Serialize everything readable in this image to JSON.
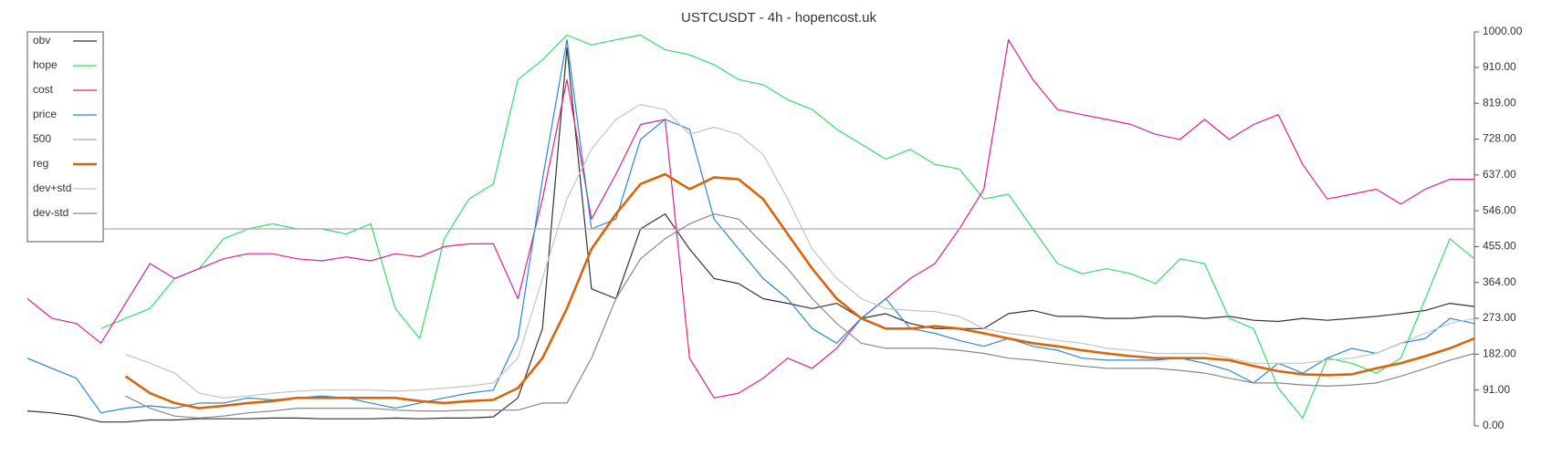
{
  "chart_data": {
    "type": "line",
    "title": "USTCUSDT - 4h - hopencost.uk",
    "ylim": [
      0,
      1000
    ],
    "yticks": [
      {
        "value": 0,
        "label": "0.00"
      },
      {
        "value": 91,
        "label": "91.00"
      },
      {
        "value": 182,
        "label": "182.00"
      },
      {
        "value": 273,
        "label": "273.00"
      },
      {
        "value": 364,
        "label": "364.00"
      },
      {
        "value": 455,
        "label": "455.00"
      },
      {
        "value": 546,
        "label": "546.00"
      },
      {
        "value": 637,
        "label": "637.00"
      },
      {
        "value": 728,
        "label": "728.00"
      },
      {
        "value": 819,
        "label": "819.00"
      },
      {
        "value": 910,
        "label": "910.00"
      },
      {
        "value": 1000,
        "label": "1000.00"
      }
    ],
    "grid": false,
    "legend": "top-left",
    "series": [
      {
        "name": "obv",
        "color": "#333333",
        "values": [
          38,
          33,
          25,
          10,
          10,
          15,
          15,
          18,
          18,
          18,
          20,
          20,
          18,
          18,
          18,
          20,
          18,
          20,
          20,
          23,
          71,
          247,
          960,
          348,
          323,
          500,
          538,
          449,
          374,
          361,
          323,
          311,
          298,
          311,
          273,
          285,
          260,
          247,
          247,
          247,
          285,
          293,
          278,
          278,
          273,
          273,
          278,
          278,
          273,
          278,
          268,
          265,
          273,
          268,
          273,
          278,
          285,
          293,
          311,
          303
        ]
      },
      {
        "name": "hope",
        "color": "#33dd66",
        "values": [
          null,
          null,
          null,
          247,
          273,
          298,
          374,
          399,
          475,
          500,
          513,
          500,
          500,
          487,
          513,
          298,
          222,
          475,
          576,
          614,
          879,
          929,
          992,
          967,
          980,
          992,
          955,
          942,
          917,
          879,
          866,
          828,
          803,
          753,
          715,
          677,
          702,
          664,
          652,
          576,
          588,
          500,
          412,
          386,
          399,
          386,
          361,
          424,
          412,
          273,
          247,
          96,
          20,
          172,
          159,
          134,
          172,
          323,
          475,
          424
        ]
      },
      {
        "name": "cost",
        "color": "#e0208a",
        "values": [
          323,
          273,
          260,
          210,
          311,
          412,
          374,
          399,
          424,
          437,
          437,
          424,
          419,
          429,
          419,
          437,
          429,
          455,
          462,
          462,
          323,
          576,
          879,
          525,
          639,
          765,
          778,
          172,
          71,
          83,
          121,
          172,
          146,
          197,
          273,
          323,
          374,
          412,
          500,
          601,
          980,
          879,
          803,
          790,
          778,
          765,
          740,
          727,
          778,
          727,
          765,
          790,
          664,
          576,
          588,
          601,
          563,
          601,
          626,
          626
        ]
      },
      {
        "name": "price",
        "color": "#2a88d8",
        "values": [
          172,
          146,
          121,
          33,
          45,
          51,
          45,
          58,
          58,
          71,
          66,
          71,
          76,
          71,
          58,
          45,
          58,
          71,
          83,
          91,
          222,
          626,
          980,
          500,
          525,
          727,
          778,
          753,
          525,
          449,
          374,
          323,
          247,
          210,
          273,
          323,
          247,
          235,
          217,
          202,
          222,
          202,
          192,
          172,
          167,
          167,
          167,
          172,
          159,
          141,
          109,
          159,
          134,
          172,
          197,
          184,
          210,
          222,
          273,
          260
        ]
      },
      {
        "name": "500",
        "color": "#aaaaaa",
        "values": [
          500,
          500,
          500,
          500,
          500,
          500,
          500,
          500,
          500,
          500,
          500,
          500,
          500,
          500,
          500,
          500,
          500,
          500,
          500,
          500,
          500,
          500,
          500,
          500,
          500,
          500,
          500,
          500,
          500,
          500,
          500,
          500,
          500,
          500,
          500,
          500,
          500,
          500,
          500,
          500,
          500,
          500,
          500,
          500,
          500,
          500,
          500,
          500,
          500,
          500,
          500,
          500,
          500,
          500,
          500,
          500,
          500,
          500,
          500,
          500
        ]
      },
      {
        "name": "reg",
        "color": "#d9640a",
        "values": [
          null,
          null,
          null,
          null,
          126,
          83,
          58,
          45,
          51,
          58,
          63,
          71,
          71,
          71,
          71,
          71,
          63,
          58,
          63,
          66,
          96,
          172,
          298,
          449,
          538,
          614,
          639,
          601,
          631,
          626,
          576,
          487,
          399,
          323,
          273,
          247,
          247,
          253,
          247,
          235,
          222,
          210,
          202,
          192,
          184,
          177,
          172,
          172,
          172,
          167,
          152,
          139,
          131,
          129,
          131,
          146,
          159,
          177,
          197,
          222
        ]
      },
      {
        "name": "dev+std",
        "color": "#c4c4c4",
        "values": [
          null,
          null,
          null,
          null,
          182,
          159,
          134,
          83,
          71,
          76,
          83,
          88,
          91,
          91,
          91,
          88,
          91,
          96,
          101,
          109,
          172,
          374,
          576,
          702,
          778,
          816,
          803,
          740,
          758,
          740,
          689,
          576,
          449,
          374,
          323,
          298,
          293,
          290,
          278,
          247,
          235,
          227,
          217,
          210,
          197,
          192,
          184,
          184,
          184,
          172,
          159,
          159,
          159,
          167,
          172,
          184,
          210,
          235,
          260,
          273
        ]
      },
      {
        "name": "dev-std",
        "color": "#888888",
        "values": [
          null,
          null,
          null,
          null,
          76,
          45,
          25,
          20,
          25,
          33,
          38,
          45,
          45,
          45,
          45,
          40,
          38,
          38,
          40,
          40,
          40,
          58,
          58,
          172,
          323,
          424,
          475,
          513,
          538,
          525,
          462,
          399,
          323,
          260,
          210,
          197,
          197,
          197,
          192,
          184,
          172,
          167,
          159,
          152,
          146,
          146,
          146,
          141,
          134,
          121,
          109,
          109,
          104,
          101,
          104,
          109,
          126,
          146,
          167,
          184
        ]
      }
    ]
  }
}
